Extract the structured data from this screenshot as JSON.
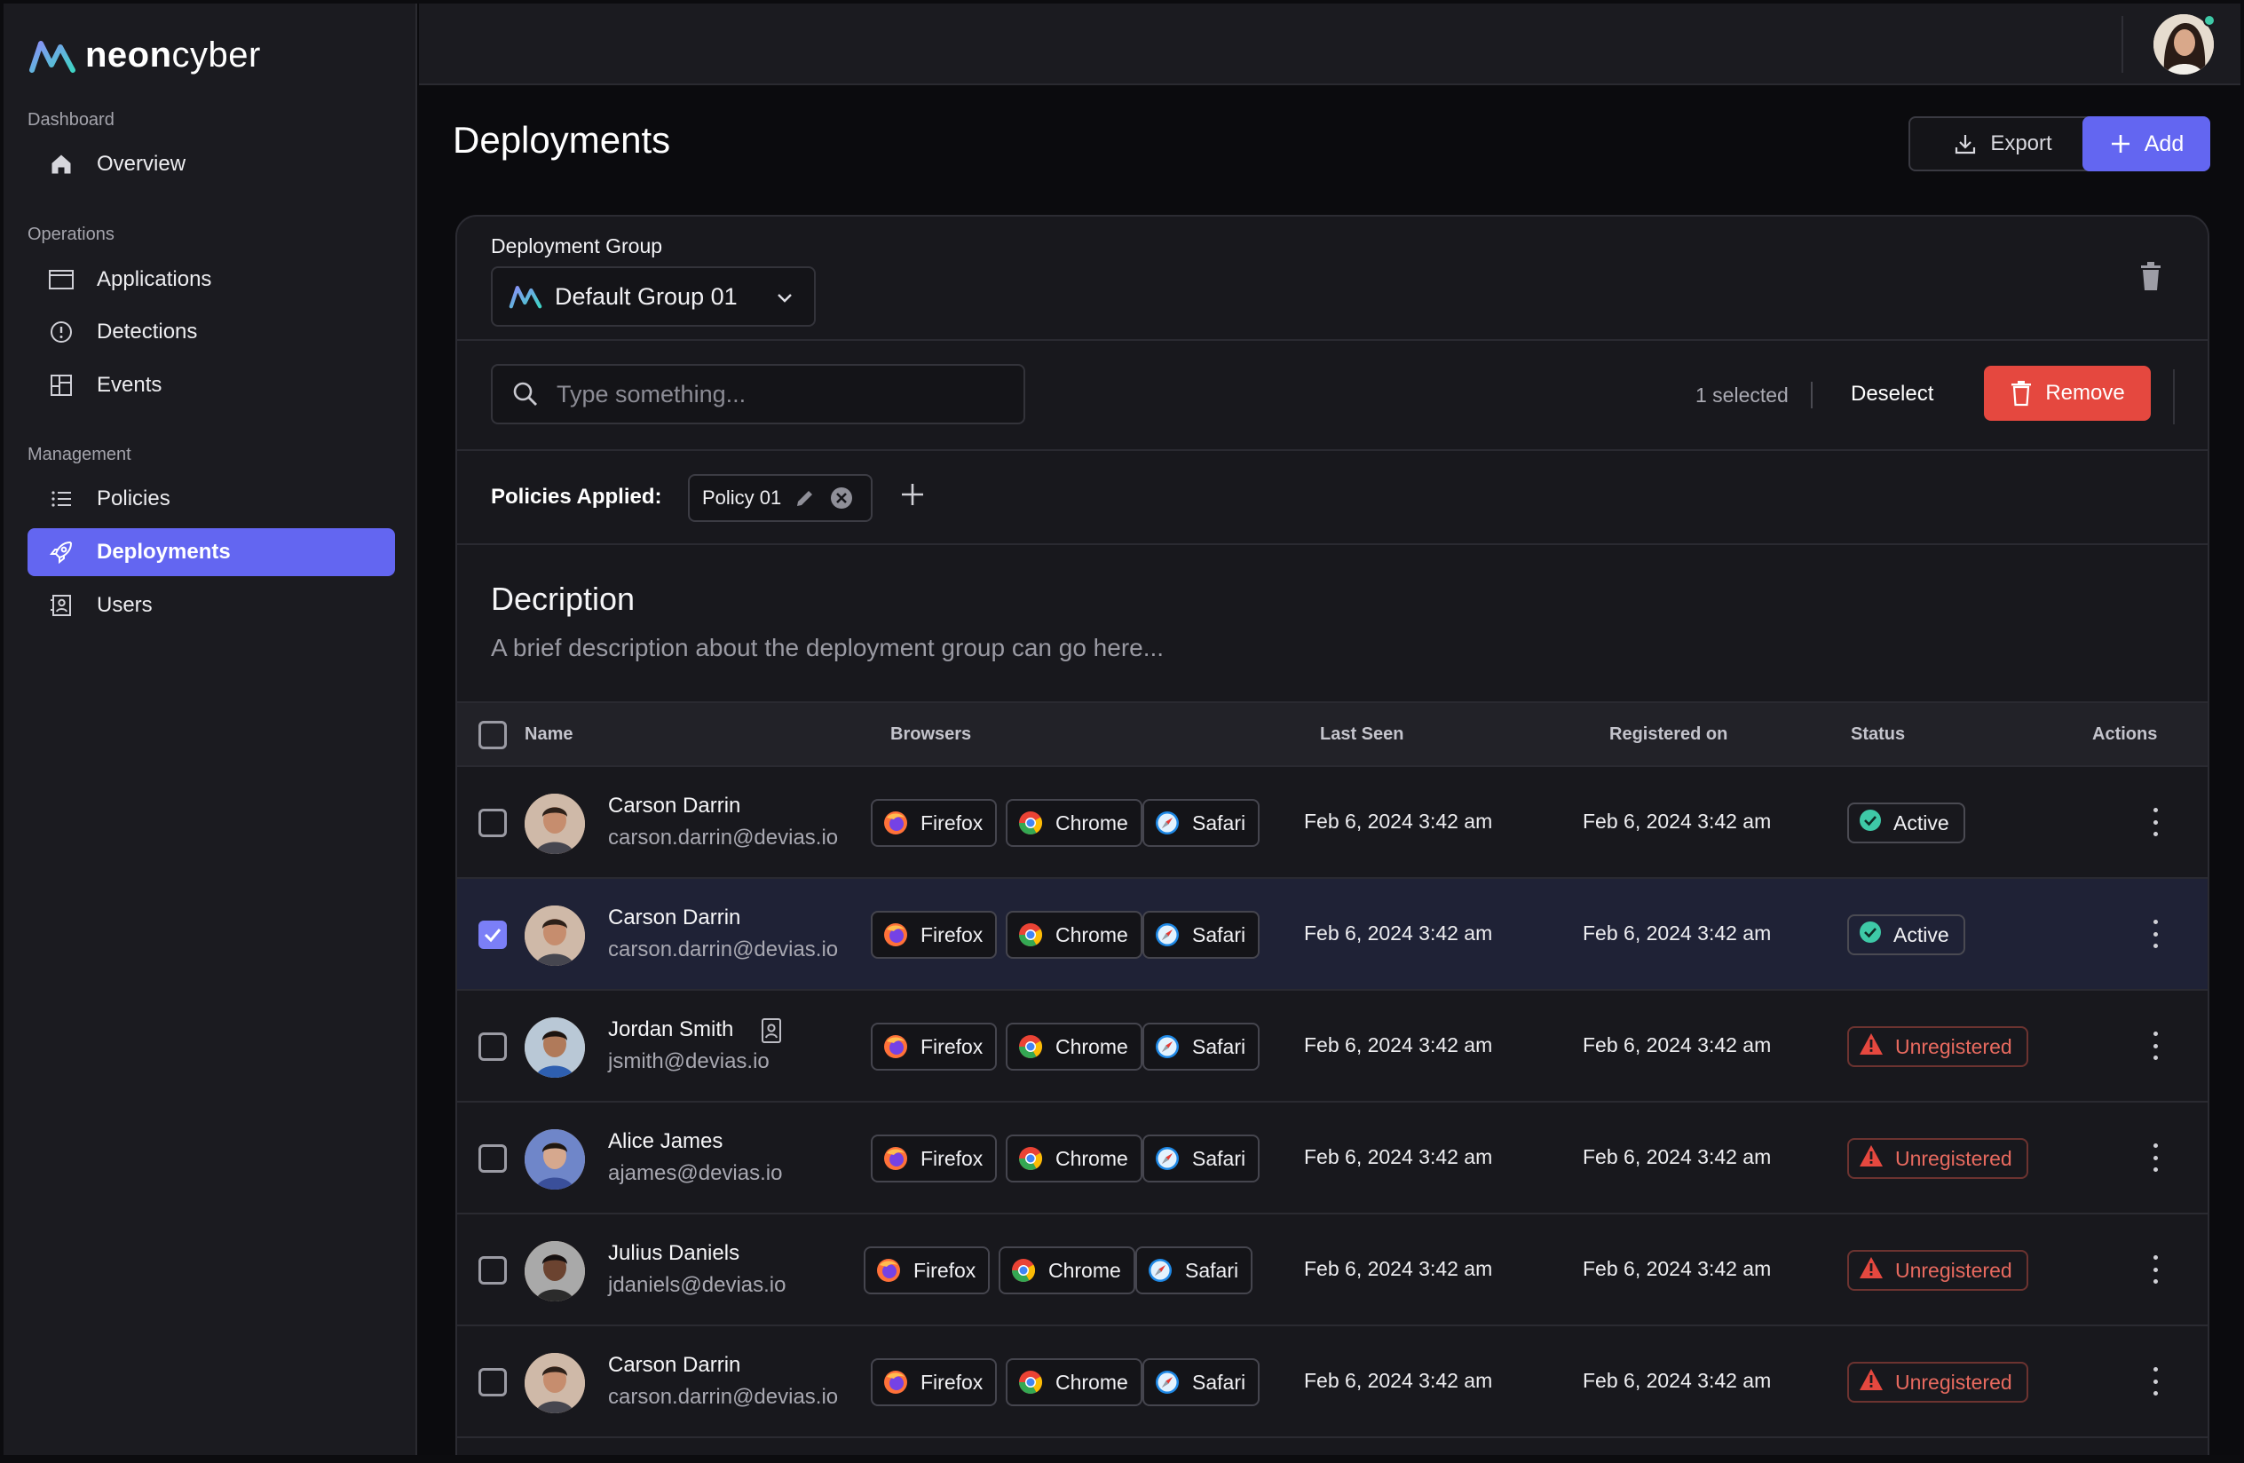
{
  "app": {
    "brand_bold": "neon",
    "brand_light": "cyber"
  },
  "sidebar": {
    "sections": [
      {
        "title": "Dashboard",
        "items": [
          {
            "label": "Overview",
            "icon": "home-icon"
          }
        ]
      },
      {
        "title": "Operations",
        "items": [
          {
            "label": "Applications",
            "icon": "window-icon"
          },
          {
            "label": "Detections",
            "icon": "alert-circle-icon"
          },
          {
            "label": "Events",
            "icon": "layout-icon"
          }
        ]
      },
      {
        "title": "Management",
        "items": [
          {
            "label": "Policies",
            "icon": "list-icon"
          },
          {
            "label": "Deployments",
            "icon": "rocket-icon",
            "active": true
          },
          {
            "label": "Users",
            "icon": "contact-icon"
          }
        ]
      }
    ]
  },
  "header": {
    "title": "Deployments",
    "export_label": "Export",
    "add_label": "Add"
  },
  "group": {
    "label": "Deployment Group",
    "selected": "Default Group 01"
  },
  "toolbar": {
    "search_placeholder": "Type something...",
    "selected_text": "1 selected",
    "deselect_label": "Deselect",
    "remove_label": "Remove"
  },
  "policies": {
    "label": "Policies Applied:",
    "items": [
      "Policy 01"
    ]
  },
  "description": {
    "title": "Decription",
    "text": "A brief description about the deployment group can go here..."
  },
  "table": {
    "columns": [
      "Name",
      "Browsers",
      "Last Seen",
      "Registered on",
      "Status",
      "Actions"
    ],
    "browsers": [
      "Firefox",
      "Chrome",
      "Safari"
    ],
    "rows": [
      {
        "name": "Carson Darrin",
        "email": "carson.darrin@devias.io",
        "last_seen": "Feb 6, 2024 3:42 am",
        "registered": "Feb 6, 2024 3:42 am",
        "status": "Active",
        "checked": false
      },
      {
        "name": "Carson Darrin",
        "email": "carson.darrin@devias.io",
        "last_seen": "Feb 6, 2024 3:42 am",
        "registered": "Feb 6, 2024 3:42 am",
        "status": "Active",
        "checked": true
      },
      {
        "name": "Jordan Smith",
        "email": "jsmith@devias.io",
        "last_seen": "Feb 6, 2024 3:42 am",
        "registered": "Feb 6, 2024 3:42 am",
        "status": "Unregistered",
        "checked": false
      },
      {
        "name": "Alice James",
        "email": "ajames@devias.io",
        "last_seen": "Feb 6, 2024 3:42 am",
        "registered": "Feb 6, 2024 3:42 am",
        "status": "Unregistered",
        "checked": false
      },
      {
        "name": "Julius Daniels",
        "email": "jdaniels@devias.io",
        "last_seen": "Feb 6, 2024 3:42 am",
        "registered": "Feb 6, 2024 3:42 am",
        "status": "Unregistered",
        "checked": false
      },
      {
        "name": "Carson Darrin",
        "email": "carson.darrin@devias.io",
        "last_seen": "Feb 6, 2024 3:42 am",
        "registered": "Feb 6, 2024 3:42 am",
        "status": "Unregistered",
        "checked": false
      }
    ]
  },
  "colors": {
    "accent": "#6366f1",
    "danger": "#e5483f",
    "success": "#3ec9a7"
  }
}
